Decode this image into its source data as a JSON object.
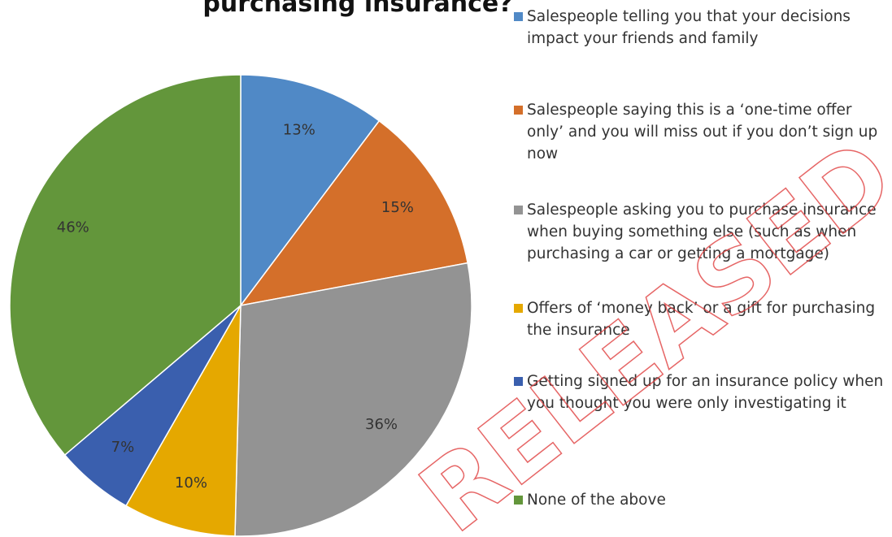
{
  "chart_data": {
    "type": "pie",
    "title": "purchasing insurance?",
    "categories": [
      "Salespeople telling you that your decisions impact your friends and family",
      "Salespeople saying this is a ‘one-time offer only’ and you will miss out if you don’t sign up now",
      "Salespeople asking you to purchase insurance when buying something else (such as when purchasing a car or getting a mortgage)",
      "Offers of ‘money back’ or a gift for purchasing the insurance",
      "Getting signed up for an insurance policy when you thought you were only investigating it",
      "None of the above"
    ],
    "values": [
      13,
      15,
      36,
      10,
      7,
      46
    ],
    "value_labels": [
      "13%",
      "15%",
      "36%",
      "10%",
      "7%",
      "46%"
    ],
    "colors": [
      "#5089c6",
      "#d46f2a",
      "#939393",
      "#e5a800",
      "#3a5fae",
      "#63963b"
    ],
    "watermark": "RELEASED"
  }
}
